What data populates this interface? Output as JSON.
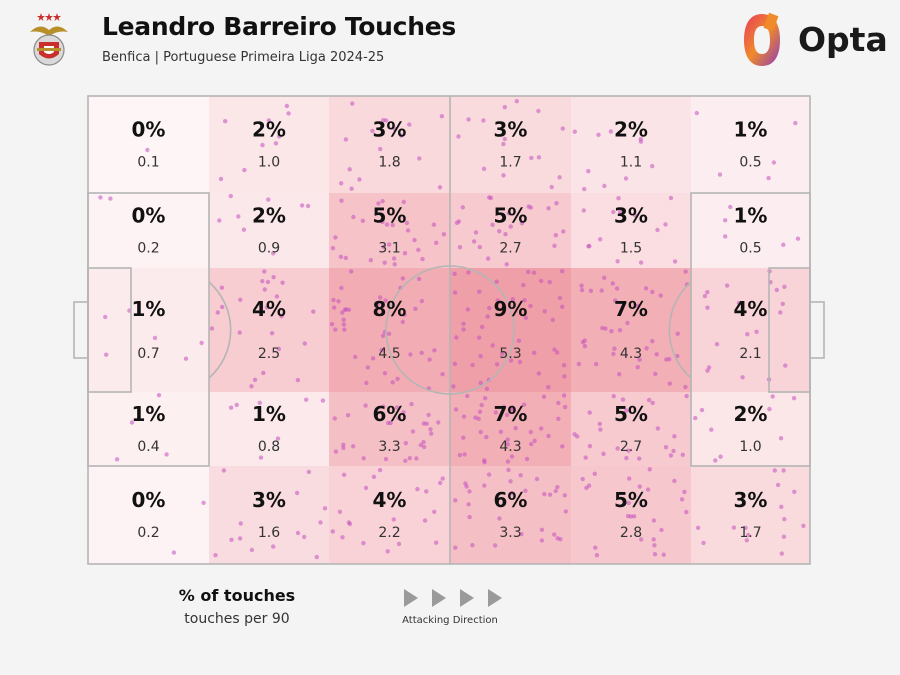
{
  "header": {
    "title": "Leandro Barreiro Touches",
    "subtitle": "Benfica | Portuguese Primeira Liga 2024-25",
    "brand": "Opta",
    "club_crest": "benfica-eagle-crest"
  },
  "legend": {
    "main": "% of touches",
    "sub": "touches per 90",
    "direction": "Attacking Direction"
  },
  "colors": {
    "cell_fill": "#e8727e",
    "dot": "#c44fc0",
    "pitch_line": "#b5b5b5",
    "brand_gradient": [
      "#e83a5c",
      "#f08a2a",
      "#8e3bb8"
    ]
  },
  "chart_data": {
    "type": "heatmap",
    "columns": 6,
    "rows": 5,
    "pct": [
      [
        "0%",
        "2%",
        "3%",
        "3%",
        "2%",
        "1%"
      ],
      [
        "0%",
        "2%",
        "5%",
        "5%",
        "3%",
        "1%"
      ],
      [
        "1%",
        "4%",
        "8%",
        "9%",
        "7%",
        "4%"
      ],
      [
        "1%",
        "1%",
        "6%",
        "7%",
        "5%",
        "2%"
      ],
      [
        "0%",
        "3%",
        "4%",
        "6%",
        "5%",
        "3%"
      ]
    ],
    "per90": [
      [
        "0.1",
        "1.0",
        "1.8",
        "1.7",
        "1.1",
        "0.5"
      ],
      [
        "0.2",
        "0.9",
        "3.1",
        "2.7",
        "1.5",
        "0.5"
      ],
      [
        "0.7",
        "2.5",
        "4.5",
        "5.3",
        "4.3",
        "2.1"
      ],
      [
        "0.4",
        "0.8",
        "3.3",
        "4.3",
        "2.7",
        "1.0"
      ],
      [
        "0.2",
        "1.6",
        "2.2",
        "3.3",
        "2.8",
        "1.7"
      ]
    ]
  }
}
